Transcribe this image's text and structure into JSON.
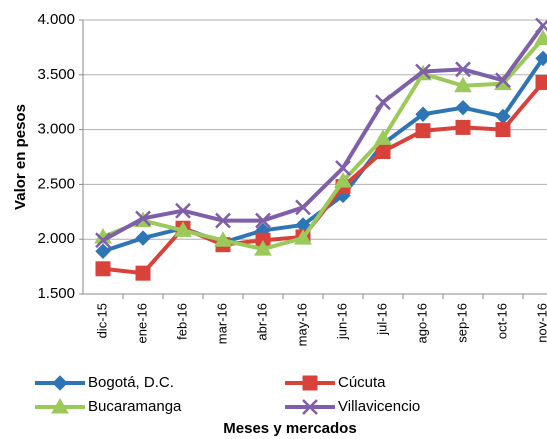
{
  "chart_data": {
    "type": "line",
    "y_label": "Valor en pesos",
    "x_label": "Meses y mercados",
    "categories": [
      "dic-15",
      "ene-16",
      "feb-16",
      "mar-16",
      "abr-16",
      "may-16",
      "jun-16",
      "jul-16",
      "ago-16",
      "sep-16",
      "oct-16",
      "nov-16"
    ],
    "series": [
      {
        "name": "Bogotá, D.C.",
        "color": "#2e75b6",
        "marker": "diamond",
        "values": [
          1890,
          2010,
          2100,
          1970,
          2080,
          2130,
          2400,
          2870,
          3140,
          3200,
          3120,
          3650
        ]
      },
      {
        "name": "Cúcuta",
        "color": "#d9413b",
        "marker": "square",
        "values": [
          1730,
          1690,
          2100,
          1950,
          1990,
          2020,
          2480,
          2800,
          2990,
          3020,
          3000,
          3430
        ]
      },
      {
        "name": "Bucaramanga",
        "color": "#9bc95a",
        "marker": "triangle",
        "values": [
          2020,
          2170,
          2080,
          1990,
          1910,
          2010,
          2530,
          2920,
          3510,
          3400,
          3420,
          3830
        ]
      },
      {
        "name": "Villavicencio",
        "color": "#7f5fa8",
        "marker": "x",
        "values": [
          1990,
          2190,
          2260,
          2170,
          2170,
          2290,
          2650,
          3250,
          3530,
          3550,
          3450,
          3950
        ]
      }
    ],
    "ylim": [
      1500,
      4000
    ],
    "yticks": [
      {
        "value": 1500,
        "label": "1.500"
      },
      {
        "value": 2000,
        "label": "2.000"
      },
      {
        "value": 2500,
        "label": "2.500"
      },
      {
        "value": 3000,
        "label": "3.000"
      },
      {
        "value": 3500,
        "label": "3.500"
      },
      {
        "value": 4000,
        "label": "4.000"
      }
    ],
    "grid": true
  }
}
